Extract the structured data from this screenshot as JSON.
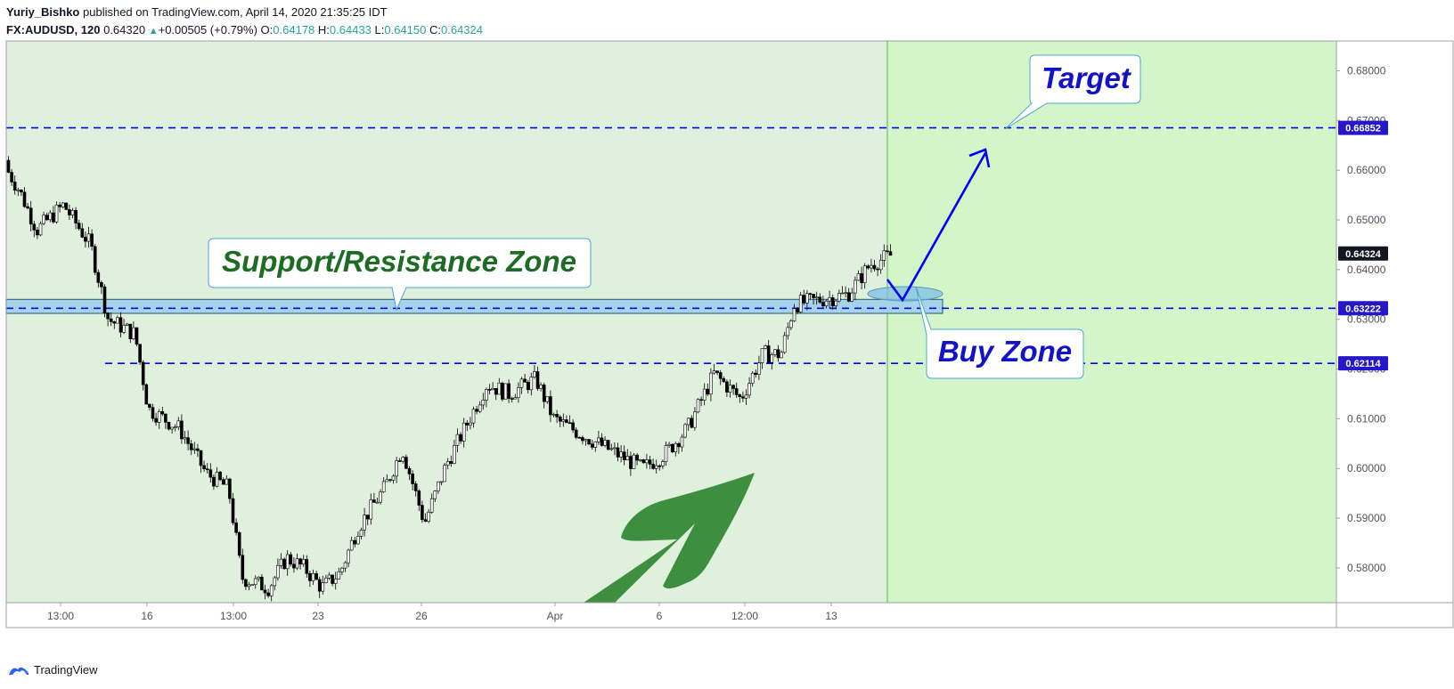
{
  "header": {
    "author": "Yuriy_Bishko",
    "published_text": "published on TradingView.com, April 14, 2020 21:35:25 IDT",
    "symbol": "FX:AUDUSD, 120",
    "last": "0.64320",
    "change": "+0.00505 (+0.79%)",
    "o_label": "O:",
    "o_value": "0.64178",
    "h_label": "H:",
    "h_value": "0.64433",
    "l_label": "L:",
    "l_value": "0.64150",
    "c_label": "C:",
    "c_value": "0.64324"
  },
  "footer": {
    "brand": "TradingView"
  },
  "colors": {
    "background": "#dff0dc",
    "future_region": "#d4f5c8",
    "level_line": "#0000ff",
    "zone_fill": "#a6d3ea",
    "price_tag": "#2418c8",
    "last_price_tag": "#131722",
    "green_arrow": "#3d8f3f",
    "support_text": "#1e6b23",
    "callout_text": "#1212c8"
  },
  "chart_data": {
    "type": "candlestick",
    "symbol": "FX:AUDUSD",
    "interval": "120",
    "ylim": [
      0.573,
      0.686
    ],
    "y_ticks": [
      "0.68000",
      "0.67000",
      "0.66000",
      "0.65000",
      "0.64000",
      "0.63000",
      "0.62000",
      "0.61000",
      "0.60000",
      "0.59000",
      "0.58000"
    ],
    "x_ticks": [
      "13:00",
      "16",
      "13:00",
      "23",
      "26",
      "Apr",
      "6",
      "12:00",
      "13"
    ],
    "price_path": [
      [
        0,
        0.662
      ],
      [
        20,
        0.656
      ],
      [
        40,
        0.648
      ],
      [
        70,
        0.653
      ],
      [
        100,
        0.645
      ],
      [
        120,
        0.63
      ],
      [
        150,
        0.627
      ],
      [
        165,
        0.612
      ],
      [
        200,
        0.608
      ],
      [
        230,
        0.599
      ],
      [
        255,
        0.596
      ],
      [
        270,
        0.578
      ],
      [
        300,
        0.576
      ],
      [
        320,
        0.582
      ],
      [
        340,
        0.58
      ],
      [
        360,
        0.576
      ],
      [
        380,
        0.579
      ],
      [
        400,
        0.588
      ],
      [
        430,
        0.596
      ],
      [
        450,
        0.604
      ],
      [
        475,
        0.589
      ],
      [
        500,
        0.601
      ],
      [
        520,
        0.608
      ],
      [
        545,
        0.617
      ],
      [
        570,
        0.615
      ],
      [
        600,
        0.618
      ],
      [
        620,
        0.61
      ],
      [
        650,
        0.607
      ],
      [
        690,
        0.603
      ],
      [
        720,
        0.6
      ],
      [
        745,
        0.603
      ],
      [
        770,
        0.608
      ],
      [
        800,
        0.619
      ],
      [
        830,
        0.614
      ],
      [
        855,
        0.623
      ],
      [
        875,
        0.623
      ],
      [
        890,
        0.633
      ],
      [
        920,
        0.634
      ],
      [
        950,
        0.635
      ],
      [
        975,
        0.641
      ],
      [
        1000,
        0.643
      ]
    ],
    "levels": [
      {
        "value": 0.66852,
        "label": "0.66852"
      },
      {
        "value": 0.63222,
        "label": "0.63222"
      },
      {
        "value": 0.62114,
        "label": "0.62114"
      }
    ],
    "zone": {
      "top": 0.634,
      "bottom": 0.6312
    },
    "last_price": {
      "value": 0.64324,
      "label": "0.64324"
    },
    "annotations": {
      "support": "Support/Resistance Zone",
      "target": "Target",
      "buy": "Buy Zone"
    }
  }
}
